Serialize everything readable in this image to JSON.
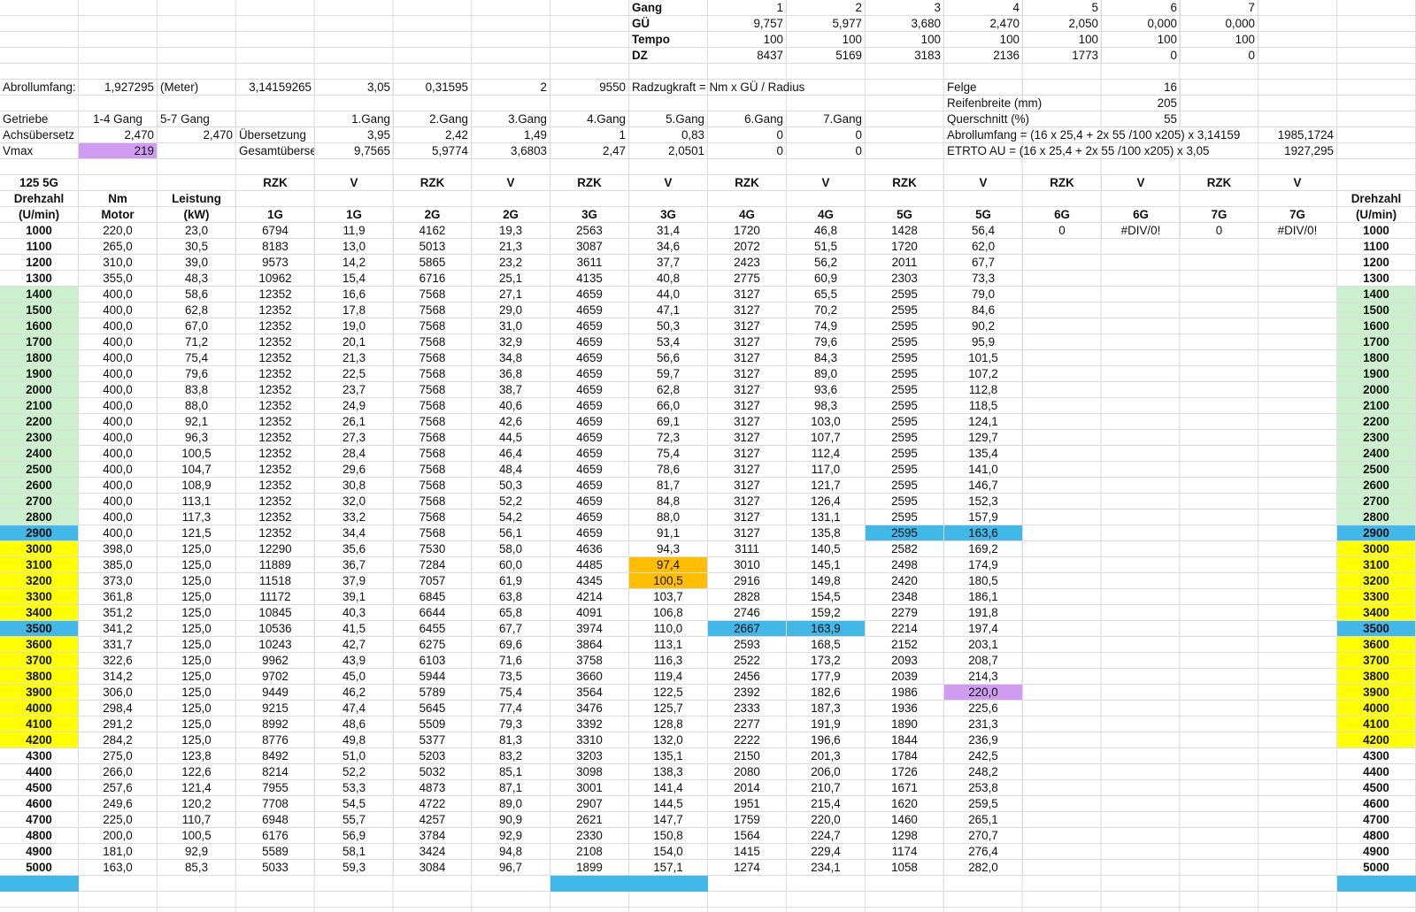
{
  "colors": {
    "green": "#ccf0cd",
    "yellow": "#ffff00",
    "blue": "#41b8e8",
    "orange": "#ffbf00",
    "purple": "#cf9cf2",
    "grid": "#dcdcdc"
  },
  "gear_summary": {
    "labels": [
      "Gang",
      "GÜ",
      "Tempo",
      "DZ"
    ],
    "gang": [
      "1",
      "2",
      "3",
      "4",
      "5",
      "6",
      "7"
    ],
    "gu": [
      "9,757",
      "5,977",
      "3,680",
      "2,470",
      "2,050",
      "0,000",
      "0,000"
    ],
    "tempo": [
      "100",
      "100",
      "100",
      "100",
      "100",
      "100",
      "100"
    ],
    "dz": [
      "8437",
      "5169",
      "3183",
      "2136",
      "1773",
      "0",
      "0"
    ]
  },
  "params": {
    "abrollumfang_label": "Abrollumfang:",
    "abrollumfang_value": "1,927295",
    "meter": "(Meter)",
    "pi": "3,14159265",
    "c1": "3,05",
    "c2": "0,31595",
    "c3": "2",
    "c4": "9550",
    "radzug": "Radzugkraft = Nm x GÜ / Radius",
    "getriebe_label": "Getriebe",
    "gang14": "1-4 Gang",
    "gang57": "5-7 Gang",
    "achs_label": "Achsübersetz",
    "achs1": "2,470",
    "achs2": "2,470",
    "ubers_label": "Übersetzung",
    "gesamt_label": "Gesamtübersetzung",
    "vmax_label": "Vmax",
    "vmax_value": "219",
    "gear_names": [
      "1.Gang",
      "2.Gang",
      "3.Gang",
      "4.Gang",
      "5.Gang",
      "6.Gang",
      "7.Gang"
    ],
    "uebersetzung": [
      "3,95",
      "2,42",
      "1,49",
      "1",
      "0,83",
      "0",
      "0"
    ],
    "gesamt": [
      "9,7565",
      "5,9774",
      "3,6803",
      "2,47",
      "2,0501",
      "0",
      "0"
    ],
    "felge_label": "Felge",
    "felge": "16",
    "reifen_label": "Reifenbreite (mm)",
    "reifen": "205",
    "quer_label": "Querschnitt (%)",
    "quer": "55",
    "formula1": "Abrollumfang = (16 x 25,4 + 2x 55 /100 x205) x 3,14159",
    "formula1_val": "1985,1724",
    "formula2": "ETRTO AU = (16 x 25,4 + 2x 55 /100 x205) x 3,05",
    "formula2_val": "1927,295"
  },
  "table": {
    "title": "125 5G",
    "col_top": [
      "Drehzahl",
      "Nm",
      "Leistung",
      "RZK",
      "V",
      "RZK",
      "V",
      "RZK",
      "V",
      "RZK",
      "V",
      "RZK",
      "V",
      "RZK",
      "V",
      "RZK",
      "V",
      "Drehzahl"
    ],
    "col_bottom": [
      "(U/min)",
      "Motor",
      "(kW)",
      "1G",
      "1G",
      "2G",
      "2G",
      "3G",
      "3G",
      "4G",
      "4G",
      "5G",
      "5G",
      "6G",
      "6G",
      "7G",
      "7G",
      "(U/min)"
    ],
    "extra_row": [
      "0",
      "#DIV/0!",
      "0",
      "#DIV/0!"
    ],
    "rows": [
      [
        "1000",
        "220,0",
        "23,0",
        "6794",
        "11,9",
        "4162",
        "19,3",
        "2563",
        "31,4",
        "1720",
        "46,8",
        "1428",
        "56,4"
      ],
      [
        "1100",
        "265,0",
        "30,5",
        "8183",
        "13,0",
        "5013",
        "21,3",
        "3087",
        "34,6",
        "2072",
        "51,5",
        "1720",
        "62,0"
      ],
      [
        "1200",
        "310,0",
        "39,0",
        "9573",
        "14,2",
        "5865",
        "23,2",
        "3611",
        "37,7",
        "2423",
        "56,2",
        "2011",
        "67,7"
      ],
      [
        "1300",
        "355,0",
        "48,3",
        "10962",
        "15,4",
        "6716",
        "25,1",
        "4135",
        "40,8",
        "2775",
        "60,9",
        "2303",
        "73,3"
      ],
      [
        "1400",
        "400,0",
        "58,6",
        "12352",
        "16,6",
        "7568",
        "27,1",
        "4659",
        "44,0",
        "3127",
        "65,5",
        "2595",
        "79,0"
      ],
      [
        "1500",
        "400,0",
        "62,8",
        "12352",
        "17,8",
        "7568",
        "29,0",
        "4659",
        "47,1",
        "3127",
        "70,2",
        "2595",
        "84,6"
      ],
      [
        "1600",
        "400,0",
        "67,0",
        "12352",
        "19,0",
        "7568",
        "31,0",
        "4659",
        "50,3",
        "3127",
        "74,9",
        "2595",
        "90,2"
      ],
      [
        "1700",
        "400,0",
        "71,2",
        "12352",
        "20,1",
        "7568",
        "32,9",
        "4659",
        "53,4",
        "3127",
        "79,6",
        "2595",
        "95,9"
      ],
      [
        "1800",
        "400,0",
        "75,4",
        "12352",
        "21,3",
        "7568",
        "34,8",
        "4659",
        "56,6",
        "3127",
        "84,3",
        "2595",
        "101,5"
      ],
      [
        "1900",
        "400,0",
        "79,6",
        "12352",
        "22,5",
        "7568",
        "36,8",
        "4659",
        "59,7",
        "3127",
        "89,0",
        "2595",
        "107,2"
      ],
      [
        "2000",
        "400,0",
        "83,8",
        "12352",
        "23,7",
        "7568",
        "38,7",
        "4659",
        "62,8",
        "3127",
        "93,6",
        "2595",
        "112,8"
      ],
      [
        "2100",
        "400,0",
        "88,0",
        "12352",
        "24,9",
        "7568",
        "40,6",
        "4659",
        "66,0",
        "3127",
        "98,3",
        "2595",
        "118,5"
      ],
      [
        "2200",
        "400,0",
        "92,1",
        "12352",
        "26,1",
        "7568",
        "42,6",
        "4659",
        "69,1",
        "3127",
        "103,0",
        "2595",
        "124,1"
      ],
      [
        "2300",
        "400,0",
        "96,3",
        "12352",
        "27,3",
        "7568",
        "44,5",
        "4659",
        "72,3",
        "3127",
        "107,7",
        "2595",
        "129,7"
      ],
      [
        "2400",
        "400,0",
        "100,5",
        "12352",
        "28,4",
        "7568",
        "46,4",
        "4659",
        "75,4",
        "3127",
        "112,4",
        "2595",
        "135,4"
      ],
      [
        "2500",
        "400,0",
        "104,7",
        "12352",
        "29,6",
        "7568",
        "48,4",
        "4659",
        "78,6",
        "3127",
        "117,0",
        "2595",
        "141,0"
      ],
      [
        "2600",
        "400,0",
        "108,9",
        "12352",
        "30,8",
        "7568",
        "50,3",
        "4659",
        "81,7",
        "3127",
        "121,7",
        "2595",
        "146,7"
      ],
      [
        "2700",
        "400,0",
        "113,1",
        "12352",
        "32,0",
        "7568",
        "52,2",
        "4659",
        "84,8",
        "3127",
        "126,4",
        "2595",
        "152,3"
      ],
      [
        "2800",
        "400,0",
        "117,3",
        "12352",
        "33,2",
        "7568",
        "54,2",
        "4659",
        "88,0",
        "3127",
        "131,1",
        "2595",
        "157,9"
      ],
      [
        "2900",
        "400,0",
        "121,5",
        "12352",
        "34,4",
        "7568",
        "56,1",
        "4659",
        "91,1",
        "3127",
        "135,8",
        "2595",
        "163,6"
      ],
      [
        "3000",
        "398,0",
        "125,0",
        "12290",
        "35,6",
        "7530",
        "58,0",
        "4636",
        "94,3",
        "3111",
        "140,5",
        "2582",
        "169,2"
      ],
      [
        "3100",
        "385,0",
        "125,0",
        "11889",
        "36,7",
        "7284",
        "60,0",
        "4485",
        "97,4",
        "3010",
        "145,1",
        "2498",
        "174,9"
      ],
      [
        "3200",
        "373,0",
        "125,0",
        "11518",
        "37,9",
        "7057",
        "61,9",
        "4345",
        "100,5",
        "2916",
        "149,8",
        "2420",
        "180,5"
      ],
      [
        "3300",
        "361,8",
        "125,0",
        "11172",
        "39,1",
        "6845",
        "63,8",
        "4214",
        "103,7",
        "2828",
        "154,5",
        "2348",
        "186,1"
      ],
      [
        "3400",
        "351,2",
        "125,0",
        "10845",
        "40,3",
        "6644",
        "65,8",
        "4091",
        "106,8",
        "2746",
        "159,2",
        "2279",
        "191,8"
      ],
      [
        "3500",
        "341,2",
        "125,0",
        "10536",
        "41,5",
        "6455",
        "67,7",
        "3974",
        "110,0",
        "2667",
        "163,9",
        "2214",
        "197,4"
      ],
      [
        "3600",
        "331,7",
        "125,0",
        "10243",
        "42,7",
        "6275",
        "69,6",
        "3864",
        "113,1",
        "2593",
        "168,5",
        "2152",
        "203,1"
      ],
      [
        "3700",
        "322,6",
        "125,0",
        "9962",
        "43,9",
        "6103",
        "71,6",
        "3758",
        "116,3",
        "2522",
        "173,2",
        "2093",
        "208,7"
      ],
      [
        "3800",
        "314,2",
        "125,0",
        "9702",
        "45,0",
        "5944",
        "73,5",
        "3660",
        "119,4",
        "2456",
        "177,9",
        "2039",
        "214,3"
      ],
      [
        "3900",
        "306,0",
        "125,0",
        "9449",
        "46,2",
        "5789",
        "75,4",
        "3564",
        "122,5",
        "2392",
        "182,6",
        "1986",
        "220,0"
      ],
      [
        "4000",
        "298,4",
        "125,0",
        "9215",
        "47,4",
        "5645",
        "77,4",
        "3476",
        "125,7",
        "2333",
        "187,3",
        "1936",
        "225,6"
      ],
      [
        "4100",
        "291,2",
        "125,0",
        "8992",
        "48,6",
        "5509",
        "79,3",
        "3392",
        "128,8",
        "2277",
        "191,9",
        "1890",
        "231,3"
      ],
      [
        "4200",
        "284,2",
        "125,0",
        "8776",
        "49,8",
        "5377",
        "81,3",
        "3310",
        "132,0",
        "2222",
        "196,6",
        "1844",
        "236,9"
      ],
      [
        "4300",
        "275,0",
        "123,8",
        "8492",
        "51,0",
        "5203",
        "83,2",
        "3203",
        "135,1",
        "2150",
        "201,3",
        "1784",
        "242,5"
      ],
      [
        "4400",
        "266,0",
        "122,6",
        "8214",
        "52,2",
        "5032",
        "85,1",
        "3098",
        "138,3",
        "2080",
        "206,0",
        "1726",
        "248,2"
      ],
      [
        "4500",
        "257,6",
        "121,4",
        "7955",
        "53,3",
        "4873",
        "87,1",
        "3001",
        "141,4",
        "2014",
        "210,7",
        "1671",
        "253,8"
      ],
      [
        "4600",
        "249,6",
        "120,2",
        "7708",
        "54,5",
        "4722",
        "89,0",
        "2907",
        "144,5",
        "1951",
        "215,4",
        "1620",
        "259,5"
      ],
      [
        "4700",
        "225,0",
        "110,7",
        "6948",
        "55,7",
        "4257",
        "90,9",
        "2621",
        "147,7",
        "1759",
        "220,0",
        "1460",
        "265,1"
      ],
      [
        "4800",
        "200,0",
        "100,5",
        "6176",
        "56,9",
        "3784",
        "92,9",
        "2330",
        "150,8",
        "1564",
        "224,7",
        "1298",
        "270,7"
      ],
      [
        "4900",
        "181,0",
        "92,9",
        "5589",
        "58,1",
        "3424",
        "94,8",
        "2108",
        "154,0",
        "1415",
        "229,4",
        "1174",
        "276,4"
      ],
      [
        "5000",
        "163,0",
        "85,3",
        "5033",
        "59,3",
        "3084",
        "96,7",
        "1899",
        "157,1",
        "1274",
        "234,1",
        "1058",
        "282,0"
      ]
    ]
  }
}
